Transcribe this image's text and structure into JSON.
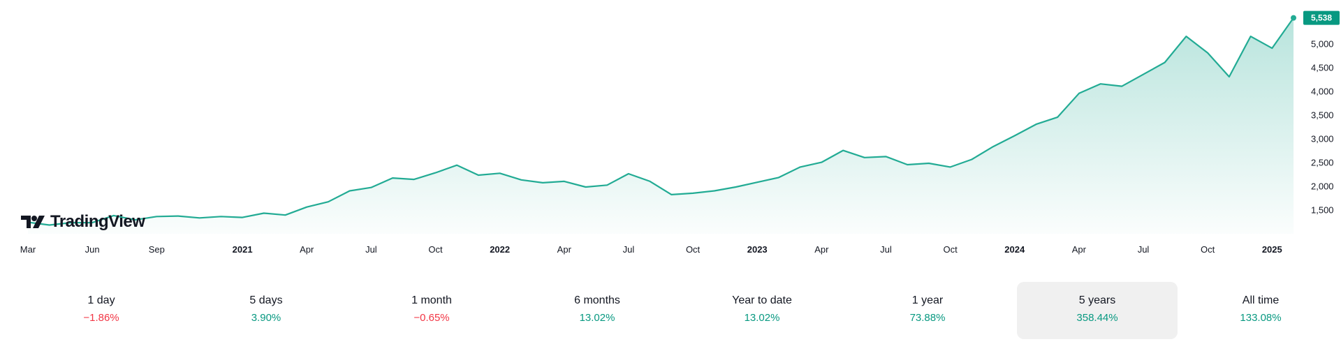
{
  "brand": {
    "name": "TradingView"
  },
  "colors": {
    "line": "#22ab94",
    "fill_top": "#22ab94",
    "positive": "#089981",
    "negative": "#f23645",
    "active_bg": "#f0f0f0"
  },
  "chart_data": {
    "type": "area",
    "x_ticks": [
      "Mar",
      "Jun",
      "Sep",
      "2021",
      "Apr",
      "Jul",
      "Oct",
      "2022",
      "Apr",
      "Jul",
      "Oct",
      "2023",
      "Apr",
      "Jul",
      "Oct",
      "2024",
      "Apr",
      "Jul",
      "Oct",
      "2025"
    ],
    "year_ticks": [
      "2021",
      "2022",
      "2023",
      "2024",
      "2025"
    ],
    "y_ticks": [
      "1,500",
      "2,000",
      "2,500",
      "3,000",
      "3,500",
      "4,000",
      "4,500",
      "5,000"
    ],
    "ylim": [
      1100,
      5650
    ],
    "last_value_label": "5,538",
    "last_value": 5538,
    "grid": false,
    "series": [
      {
        "x": [
          "2020-03",
          "2020-04",
          "2020-05",
          "2020-06",
          "2020-07",
          "2020-08",
          "2020-09",
          "2020-10",
          "2020-11",
          "2020-12",
          "2021-01",
          "2021-02",
          "2021-03",
          "2021-04",
          "2021-05",
          "2021-06",
          "2021-07",
          "2021-08",
          "2021-09",
          "2021-10",
          "2021-11",
          "2021-12",
          "2022-01",
          "2022-02",
          "2022-03",
          "2022-04",
          "2022-05",
          "2022-06",
          "2022-07",
          "2022-08",
          "2022-09",
          "2022-10",
          "2022-11",
          "2022-12",
          "2023-01",
          "2023-02",
          "2023-03",
          "2023-04",
          "2023-05",
          "2023-06",
          "2023-07",
          "2023-08",
          "2023-09",
          "2023-10",
          "2023-11",
          "2023-12",
          "2024-01",
          "2024-02",
          "2024-03",
          "2024-04",
          "2024-05",
          "2024-06",
          "2024-07",
          "2024-08",
          "2024-09",
          "2024-10",
          "2024-11",
          "2024-12",
          "2025-01",
          "2025-02"
        ],
        "values": [
          1240,
          1180,
          1230,
          1230,
          1380,
          1290,
          1360,
          1370,
          1330,
          1360,
          1340,
          1430,
          1390,
          1560,
          1670,
          1900,
          1970,
          2170,
          2140,
          2280,
          2440,
          2230,
          2270,
          2130,
          2070,
          2100,
          1980,
          2020,
          2260,
          2100,
          1820,
          1850,
          1900,
          1980,
          2080,
          2180,
          2400,
          2500,
          2750,
          2600,
          2620,
          2450,
          2480,
          2400,
          2560,
          2830,
          3060,
          3300,
          3450,
          3950,
          4150,
          4100,
          4350,
          4600,
          5150,
          4800,
          4300,
          5150,
          4900,
          5538
        ]
      }
    ]
  },
  "periods": [
    {
      "label": "1 day",
      "value": "−1.86%",
      "sign": "neg"
    },
    {
      "label": "5 days",
      "value": "3.90%",
      "sign": "pos"
    },
    {
      "label": "1 month",
      "value": "−0.65%",
      "sign": "neg"
    },
    {
      "label": "6 months",
      "value": "13.02%",
      "sign": "pos"
    },
    {
      "label": "Year to date",
      "value": "13.02%",
      "sign": "pos"
    },
    {
      "label": "1 year",
      "value": "73.88%",
      "sign": "pos"
    },
    {
      "label": "5 years",
      "value": "358.44%",
      "sign": "pos",
      "active": true
    },
    {
      "label": "All time",
      "value": "133.08%",
      "sign": "pos"
    }
  ]
}
